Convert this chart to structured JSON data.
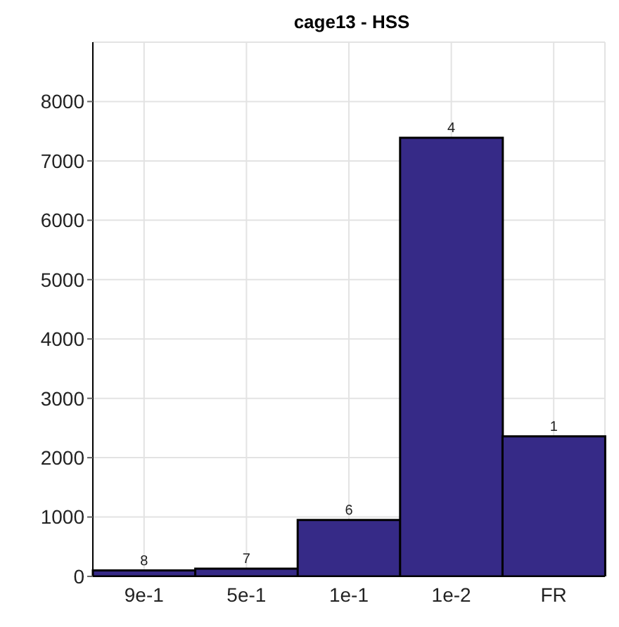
{
  "chart_data": {
    "type": "bar",
    "title": "cage13 - HSS",
    "categories": [
      "9e-1",
      "5e-1",
      "1e-1",
      "1e-2",
      "FR"
    ],
    "values": [
      100,
      130,
      950,
      7390,
      2360
    ],
    "annotations": [
      {
        "text": "8",
        "x": "9e-1",
        "y": 100
      },
      {
        "text": "7",
        "x": "5e-1",
        "y": 130
      },
      {
        "text": "6",
        "x": "1e-1",
        "y": 950
      },
      {
        "text": "4",
        "x": "1e-2",
        "y": 7390
      },
      {
        "text": "1",
        "x": "FR",
        "y": 2360
      }
    ],
    "color": "#362a87",
    "ylim": [
      0,
      9000
    ],
    "yticks": [
      0,
      1000,
      2000,
      3000,
      4000,
      5000,
      6000,
      7000,
      8000
    ],
    "grid": true
  }
}
